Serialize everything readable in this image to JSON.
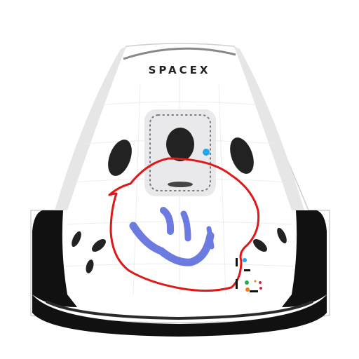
{
  "brand": {
    "wordmark": "SPACEX"
  },
  "colors": {
    "hull": "#ffffff",
    "hull_shade": "#e6e6e6",
    "trunk": "#111111",
    "trunk_band": "#2a2a2a",
    "window": "#222222",
    "hatch_panel": "#e9e9ec",
    "accent_dot": "#1ea7f0",
    "drawing_red": "#e01818",
    "drawing_blue": "#3b4fd6"
  },
  "drawing": {
    "shape": "hand-drawn red circle with blue smiley face",
    "strokes": [
      "circle-outline",
      "eye-left",
      "eye-right",
      "smile"
    ]
  },
  "marker_legend": {
    "swatches": [
      "#111111",
      "#1ea7f0",
      "#1fb24a",
      "#f07b16",
      "#d22a4a",
      "#222222"
    ]
  }
}
